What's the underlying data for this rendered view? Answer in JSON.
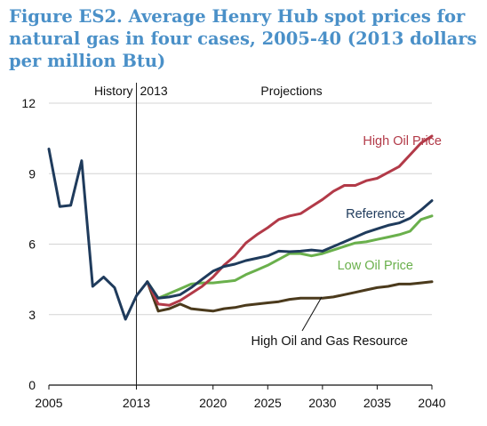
{
  "chart_data": {
    "type": "line",
    "title": "Figure ES2. Average Henry Hub spot prices for natural gas in four cases, 2005-40 (2013 dollars per million Btu)",
    "xlim": [
      2005,
      2040
    ],
    "ylim": [
      0,
      12
    ],
    "x_ticks": [
      "2005",
      "2013",
      "2020",
      "2025",
      "2030",
      "2035",
      "2040"
    ],
    "y_ticks": [
      "0",
      "3",
      "6",
      "9",
      "12"
    ],
    "annotations": {
      "history": "History",
      "divider_year": "2013",
      "projections": "Projections"
    },
    "history": {
      "color": "#1f3b5c",
      "x": [
        2005,
        2006,
        2007,
        2008,
        2009,
        2010,
        2011,
        2012,
        2013,
        2014
      ],
      "y": [
        10.05,
        7.6,
        7.65,
        9.55,
        4.2,
        4.6,
        4.15,
        2.8,
        3.8,
        4.4
      ]
    },
    "series": [
      {
        "name": "High Oil Price",
        "color": "#b23a48",
        "x": [
          2014,
          2015,
          2016,
          2017,
          2018,
          2019,
          2020,
          2021,
          2022,
          2023,
          2024,
          2025,
          2026,
          2027,
          2028,
          2029,
          2030,
          2031,
          2032,
          2033,
          2034,
          2035,
          2036,
          2037,
          2038,
          2039,
          2040
        ],
        "y": [
          4.4,
          3.45,
          3.4,
          3.6,
          3.9,
          4.2,
          4.6,
          5.1,
          5.5,
          6.05,
          6.4,
          6.7,
          7.05,
          7.2,
          7.3,
          7.6,
          7.9,
          8.25,
          8.5,
          8.5,
          8.7,
          8.8,
          9.05,
          9.3,
          9.8,
          10.3,
          10.6
        ]
      },
      {
        "name": "Reference",
        "color": "#1f3b5c",
        "x": [
          2014,
          2015,
          2016,
          2017,
          2018,
          2019,
          2020,
          2021,
          2022,
          2023,
          2024,
          2025,
          2026,
          2027,
          2028,
          2029,
          2030,
          2031,
          2032,
          2033,
          2034,
          2035,
          2036,
          2037,
          2038,
          2039,
          2040
        ],
        "y": [
          4.4,
          3.7,
          3.75,
          3.85,
          4.15,
          4.5,
          4.85,
          5.05,
          5.15,
          5.3,
          5.4,
          5.5,
          5.7,
          5.68,
          5.7,
          5.75,
          5.7,
          5.9,
          6.1,
          6.3,
          6.5,
          6.65,
          6.8,
          6.9,
          7.1,
          7.45,
          7.85
        ]
      },
      {
        "name": "Low Oil Price",
        "color": "#6ab04c",
        "x": [
          2014,
          2015,
          2016,
          2017,
          2018,
          2019,
          2020,
          2021,
          2022,
          2023,
          2024,
          2025,
          2026,
          2027,
          2028,
          2029,
          2030,
          2031,
          2032,
          2033,
          2034,
          2035,
          2036,
          2037,
          2038,
          2039,
          2040
        ],
        "y": [
          4.4,
          3.7,
          3.9,
          4.1,
          4.3,
          4.35,
          4.35,
          4.4,
          4.45,
          4.7,
          4.9,
          5.1,
          5.35,
          5.6,
          5.6,
          5.5,
          5.6,
          5.75,
          5.9,
          6.05,
          6.1,
          6.2,
          6.3,
          6.4,
          6.55,
          7.05,
          7.2
        ]
      },
      {
        "name": "High Oil and Gas Resource",
        "color": "#4b3a1c",
        "x": [
          2014,
          2015,
          2016,
          2017,
          2018,
          2019,
          2020,
          2021,
          2022,
          2023,
          2024,
          2025,
          2026,
          2027,
          2028,
          2029,
          2030,
          2031,
          2032,
          2033,
          2034,
          2035,
          2036,
          2037,
          2038,
          2039,
          2040
        ],
        "y": [
          4.4,
          3.15,
          3.25,
          3.45,
          3.25,
          3.2,
          3.15,
          3.25,
          3.3,
          3.4,
          3.45,
          3.5,
          3.55,
          3.65,
          3.7,
          3.7,
          3.7,
          3.75,
          3.85,
          3.95,
          4.05,
          4.15,
          4.2,
          4.3,
          4.3,
          4.35,
          4.4
        ]
      }
    ]
  }
}
